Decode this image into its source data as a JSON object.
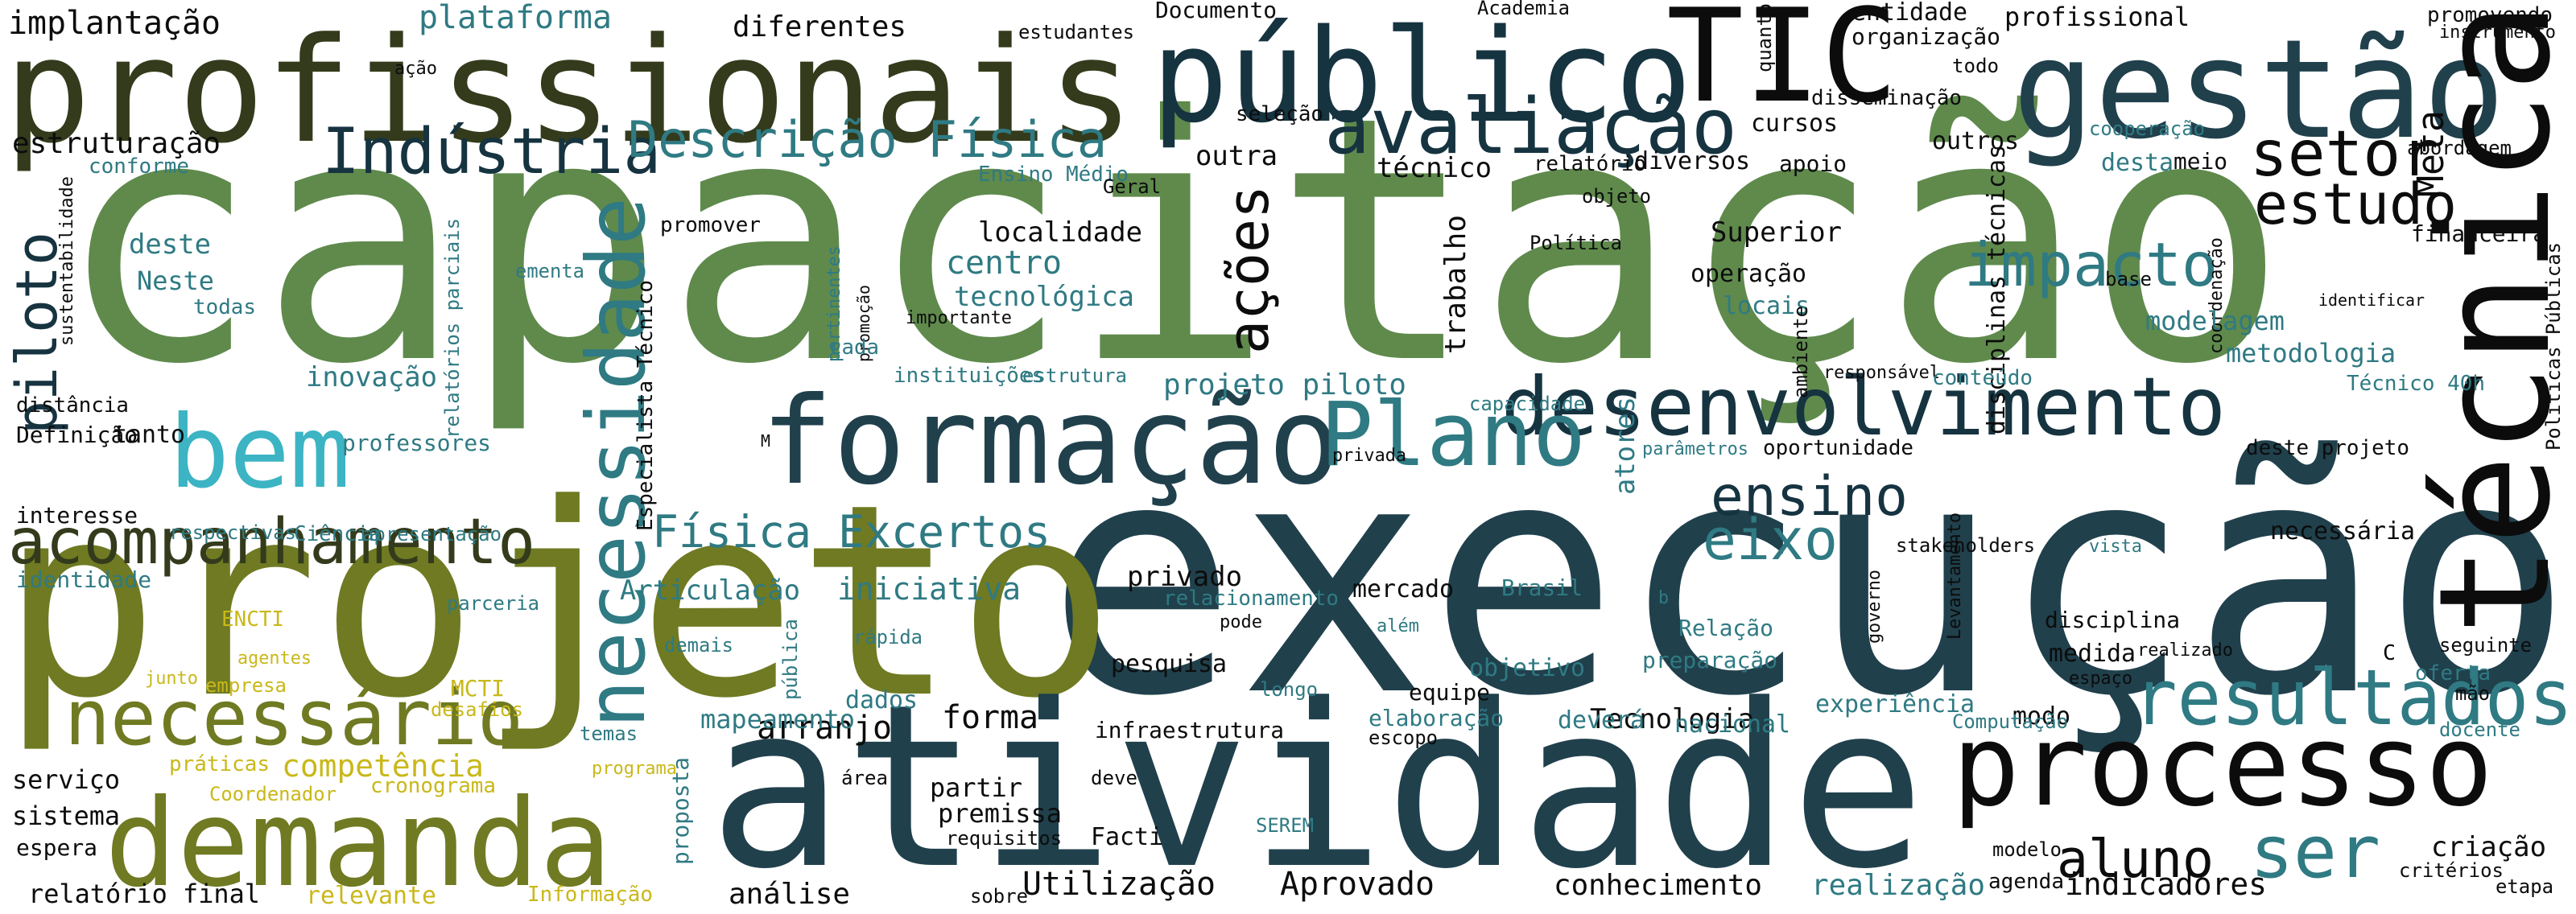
{
  "palette": {
    "background": "#ffffff",
    "sage": "#5f8a4c",
    "olive": "#6f7a22",
    "mustard": "#c9b81a",
    "teal": "#2f7a83",
    "cyan": "#3cb4c4",
    "navy": "#20404c",
    "dark-navy": "#163340",
    "black": "#0c0c0c",
    "dark-olive": "#333b1c"
  },
  "words": [
    {
      "text": "capacitação",
      "color": "sage"
    },
    {
      "text": "execução",
      "color": "navy"
    },
    {
      "text": "projeto",
      "color": "olive"
    },
    {
      "text": "atividade",
      "color": "navy"
    },
    {
      "text": "profissionais",
      "color": "dark-olive"
    },
    {
      "text": "público",
      "color": "dark-navy"
    },
    {
      "text": "TIC",
      "color": "black"
    },
    {
      "text": "gestão",
      "color": "navy"
    },
    {
      "text": "técnica",
      "color": "black"
    },
    {
      "text": "formação",
      "color": "navy"
    },
    {
      "text": "demanda",
      "color": "olive"
    },
    {
      "text": "processo",
      "color": "black"
    },
    {
      "text": "desenvolvimento",
      "color": "dark-navy"
    },
    {
      "text": "avaliação",
      "color": "dark-navy"
    },
    {
      "text": "acompanhamento",
      "color": "dark-olive"
    },
    {
      "text": "bem",
      "color": "cyan"
    },
    {
      "text": "Plano",
      "color": "teal"
    },
    {
      "text": "necessidade",
      "color": "teal"
    },
    {
      "text": "resultados",
      "color": "teal"
    },
    {
      "text": "necessário",
      "color": "olive"
    },
    {
      "text": "Indústria",
      "color": "dark-navy"
    },
    {
      "text": "Descrição Física",
      "color": "teal"
    },
    {
      "text": "setor",
      "color": "black"
    },
    {
      "text": "estudo",
      "color": "black"
    },
    {
      "text": "impacto",
      "color": "teal"
    },
    {
      "text": "ensino",
      "color": "dark-navy"
    },
    {
      "text": "eixo",
      "color": "teal"
    },
    {
      "text": "ações",
      "color": "black"
    },
    {
      "text": "piloto",
      "color": "dark-navy"
    },
    {
      "text": "ser",
      "color": "teal"
    },
    {
      "text": "aluno",
      "color": "black"
    },
    {
      "text": "Física Excertos",
      "color": "teal"
    },
    {
      "text": "competência",
      "color": "mustard"
    },
    {
      "text": "Meta",
      "color": "black"
    },
    {
      "text": "implantação",
      "color": "black"
    },
    {
      "text": "plataforma",
      "color": "teal"
    },
    {
      "text": "diferentes",
      "color": "black"
    },
    {
      "text": "estudantes",
      "color": "black"
    },
    {
      "text": "Documento",
      "color": "black"
    },
    {
      "text": "Academia",
      "color": "black"
    },
    {
      "text": "entidade",
      "color": "black"
    },
    {
      "text": "profissional",
      "color": "black"
    },
    {
      "text": "promovendo",
      "color": "black"
    },
    {
      "text": "instrumento",
      "color": "black"
    },
    {
      "text": "organização",
      "color": "black"
    },
    {
      "text": "todo",
      "color": "black"
    },
    {
      "text": "quanto",
      "color": "black"
    },
    {
      "text": "disseminação",
      "color": "black"
    },
    {
      "text": "outros",
      "color": "black"
    },
    {
      "text": "cursos",
      "color": "black"
    },
    {
      "text": "seleção",
      "color": "black"
    },
    {
      "text": "ação",
      "color": "black"
    },
    {
      "text": "estruturação",
      "color": "black"
    },
    {
      "text": "conforme",
      "color": "teal"
    },
    {
      "text": "Ensino Médio",
      "color": "teal"
    },
    {
      "text": "outra",
      "color": "black"
    },
    {
      "text": "Geral",
      "color": "black"
    },
    {
      "text": "técnico",
      "color": "black"
    },
    {
      "text": "relatório",
      "color": "black"
    },
    {
      "text": "diversos",
      "color": "black"
    },
    {
      "text": "apoio",
      "color": "black"
    },
    {
      "text": "objeto",
      "color": "black"
    },
    {
      "text": "desta",
      "color": "teal"
    },
    {
      "text": "meio",
      "color": "black"
    },
    {
      "text": "cooperação",
      "color": "teal"
    },
    {
      "text": "abordagem",
      "color": "black"
    },
    {
      "text": "disciplinas técnicas",
      "color": "black"
    },
    {
      "text": "Superior",
      "color": "black"
    },
    {
      "text": "Política",
      "color": "black"
    },
    {
      "text": "promover",
      "color": "black"
    },
    {
      "text": "localidade",
      "color": "black"
    },
    {
      "text": "centro",
      "color": "teal"
    },
    {
      "text": "tecnológica",
      "color": "teal"
    },
    {
      "text": "deste",
      "color": "teal"
    },
    {
      "text": "Neste",
      "color": "teal"
    },
    {
      "text": "todas",
      "color": "teal"
    },
    {
      "text": "ementa",
      "color": "teal"
    },
    {
      "text": "relatórios parciais",
      "color": "teal"
    },
    {
      "text": "pertinentes",
      "color": "teal"
    },
    {
      "text": "importante",
      "color": "black"
    },
    {
      "text": "promoção",
      "color": "black"
    },
    {
      "text": "cada",
      "color": "teal"
    },
    {
      "text": "instituições",
      "color": "teal"
    },
    {
      "text": "estrutura",
      "color": "teal"
    },
    {
      "text": "Especialista Técnico",
      "color": "black"
    },
    {
      "text": "trabalho",
      "color": "black"
    },
    {
      "text": "operação",
      "color": "black"
    },
    {
      "text": "locais",
      "color": "teal"
    },
    {
      "text": "ambiente",
      "color": "black"
    },
    {
      "text": "responsável",
      "color": "black"
    },
    {
      "text": "conteúdo",
      "color": "teal"
    },
    {
      "text": "base",
      "color": "black"
    },
    {
      "text": "coordenação",
      "color": "black"
    },
    {
      "text": "identificar",
      "color": "black"
    },
    {
      "text": "modelagem",
      "color": "teal"
    },
    {
      "text": "metodologia",
      "color": "teal"
    },
    {
      "text": "financeira",
      "color": "black"
    },
    {
      "text": "Técnico 40h",
      "color": "teal"
    },
    {
      "text": "Políticas Públicas",
      "color": "black"
    },
    {
      "text": "sustentabilidade",
      "color": "black"
    },
    {
      "text": "distância",
      "color": "black"
    },
    {
      "text": "inovação",
      "color": "teal"
    },
    {
      "text": "tanto",
      "color": "black"
    },
    {
      "text": "Definição",
      "color": "black"
    },
    {
      "text": "professores",
      "color": "teal"
    },
    {
      "text": "interesse",
      "color": "black"
    },
    {
      "text": "identidade",
      "color": "teal"
    },
    {
      "text": "respectivas",
      "color": "teal"
    },
    {
      "text": "Ciência",
      "color": "teal"
    },
    {
      "text": "apresentação",
      "color": "teal"
    },
    {
      "text": "projeto piloto",
      "color": "teal"
    },
    {
      "text": "capacidade",
      "color": "teal"
    },
    {
      "text": "privada",
      "color": "black"
    },
    {
      "text": "M",
      "color": "black"
    },
    {
      "text": "atores",
      "color": "teal"
    },
    {
      "text": "parâmetros",
      "color": "teal"
    },
    {
      "text": "oportunidade",
      "color": "black"
    },
    {
      "text": "deste projeto",
      "color": "black"
    },
    {
      "text": "necessária",
      "color": "black"
    },
    {
      "text": "privado",
      "color": "black"
    },
    {
      "text": "mercado",
      "color": "black"
    },
    {
      "text": "Brasil",
      "color": "teal"
    },
    {
      "text": "relacionamento",
      "color": "teal"
    },
    {
      "text": "b",
      "color": "teal"
    },
    {
      "text": "stakeholders",
      "color": "black"
    },
    {
      "text": "vista",
      "color": "teal"
    },
    {
      "text": "Articulação",
      "color": "teal"
    },
    {
      "text": "iniciativa",
      "color": "teal"
    },
    {
      "text": "além",
      "color": "teal"
    },
    {
      "text": "governo",
      "color": "black"
    },
    {
      "text": "Levantamento",
      "color": "black"
    },
    {
      "text": "disciplina",
      "color": "black"
    },
    {
      "text": "medida",
      "color": "black"
    },
    {
      "text": "realizado",
      "color": "black"
    },
    {
      "text": "C",
      "color": "black"
    },
    {
      "text": "modo",
      "color": "black"
    },
    {
      "text": "rápida",
      "color": "teal"
    },
    {
      "text": "dados",
      "color": "teal"
    },
    {
      "text": "demais",
      "color": "teal"
    },
    {
      "text": "pública",
      "color": "teal"
    },
    {
      "text": "pode",
      "color": "black"
    },
    {
      "text": "Relação",
      "color": "teal"
    },
    {
      "text": "objetivo",
      "color": "teal"
    },
    {
      "text": "preparação",
      "color": "teal"
    },
    {
      "text": "pesquisa",
      "color": "black"
    },
    {
      "text": "seguinte",
      "color": "black"
    },
    {
      "text": "oferta",
      "color": "teal"
    },
    {
      "text": "mão",
      "color": "black"
    },
    {
      "text": "docente",
      "color": "teal"
    },
    {
      "text": "espaço",
      "color": "black"
    },
    {
      "text": "arranjo",
      "color": "black"
    },
    {
      "text": "longo",
      "color": "teal"
    },
    {
      "text": "equipe",
      "color": "black"
    },
    {
      "text": "Tecnologia",
      "color": "black"
    },
    {
      "text": "experiência",
      "color": "teal"
    },
    {
      "text": "elaboração",
      "color": "teal"
    },
    {
      "text": "deverá",
      "color": "teal"
    },
    {
      "text": "nacional",
      "color": "teal"
    },
    {
      "text": "Computação",
      "color": "teal"
    },
    {
      "text": "mapeamento",
      "color": "teal"
    },
    {
      "text": "forma",
      "color": "black"
    },
    {
      "text": "infraestrutura",
      "color": "black"
    },
    {
      "text": "escopo",
      "color": "black"
    },
    {
      "text": "parceria",
      "color": "teal"
    },
    {
      "text": "ENCTI",
      "color": "mustard"
    },
    {
      "text": "agentes",
      "color": "mustard"
    },
    {
      "text": "junto",
      "color": "mustard"
    },
    {
      "text": "empresa",
      "color": "mustard"
    },
    {
      "text": "MCTI",
      "color": "mustard"
    },
    {
      "text": "desafios",
      "color": "mustard"
    },
    {
      "text": "temas",
      "color": "teal"
    },
    {
      "text": "práticas",
      "color": "mustard"
    },
    {
      "text": "programa",
      "color": "mustard"
    },
    {
      "text": "cronograma",
      "color": "mustard"
    },
    {
      "text": "Coordenador",
      "color": "mustard"
    },
    {
      "text": "relevante",
      "color": "mustard"
    },
    {
      "text": "Informação",
      "color": "mustard"
    },
    {
      "text": "serviço",
      "color": "black"
    },
    {
      "text": "sistema",
      "color": "black"
    },
    {
      "text": "espera",
      "color": "black"
    },
    {
      "text": "relatório final",
      "color": "black"
    },
    {
      "text": "proposta",
      "color": "teal"
    },
    {
      "text": "área",
      "color": "black"
    },
    {
      "text": "deve",
      "color": "black"
    },
    {
      "text": "partir",
      "color": "black"
    },
    {
      "text": "premissa",
      "color": "black"
    },
    {
      "text": "requisitos",
      "color": "black"
    },
    {
      "text": "Facti",
      "color": "black"
    },
    {
      "text": "SEREM",
      "color": "teal"
    },
    {
      "text": "análise",
      "color": "black"
    },
    {
      "text": "sobre",
      "color": "black"
    },
    {
      "text": "Utilização",
      "color": "black"
    },
    {
      "text": "Aprovado",
      "color": "black"
    },
    {
      "text": "conhecimento",
      "color": "black"
    },
    {
      "text": "realização",
      "color": "teal"
    },
    {
      "text": "agenda",
      "color": "black"
    },
    {
      "text": "indicadores",
      "color": "black"
    },
    {
      "text": "modelo",
      "color": "black"
    },
    {
      "text": "criação",
      "color": "black"
    },
    {
      "text": "critérios",
      "color": "black"
    },
    {
      "text": "etapa",
      "color": "black"
    }
  ]
}
